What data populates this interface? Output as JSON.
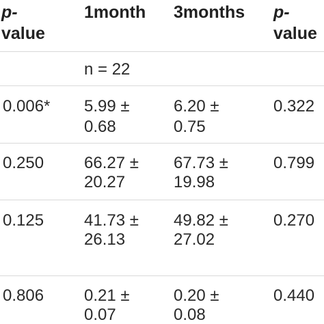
{
  "table": {
    "headers": {
      "pvalue_left": {
        "line1": "p-",
        "line2": "value"
      },
      "col_1month": "1month",
      "col_3months": "3months",
      "pvalue_right": {
        "line1": "p-",
        "line2": "value"
      }
    },
    "sample_note": "n = 22",
    "rows": [
      {
        "p_left": "0.006*",
        "m1": "5.99 ±",
        "m1b": "0.68",
        "m3": "6.20 ±",
        "m3b": "0.75",
        "p_right": "0.322"
      },
      {
        "p_left": "0.250",
        "m1": "66.27 ±",
        "m1b": "20.27",
        "m3": "67.73 ±",
        "m3b": "19.98",
        "p_right": "0.799"
      },
      {
        "p_left": "0.125",
        "m1": "41.73 ±",
        "m1b": "26.13",
        "m3": "49.82 ±",
        "m3b": "27.02",
        "p_right": "0.270"
      },
      {
        "p_left": "0.806",
        "m1": "0.21 ±",
        "m1b": "0.07",
        "m3": "0.20 ±",
        "m3b": "0.08",
        "p_right": "0.440"
      }
    ]
  }
}
